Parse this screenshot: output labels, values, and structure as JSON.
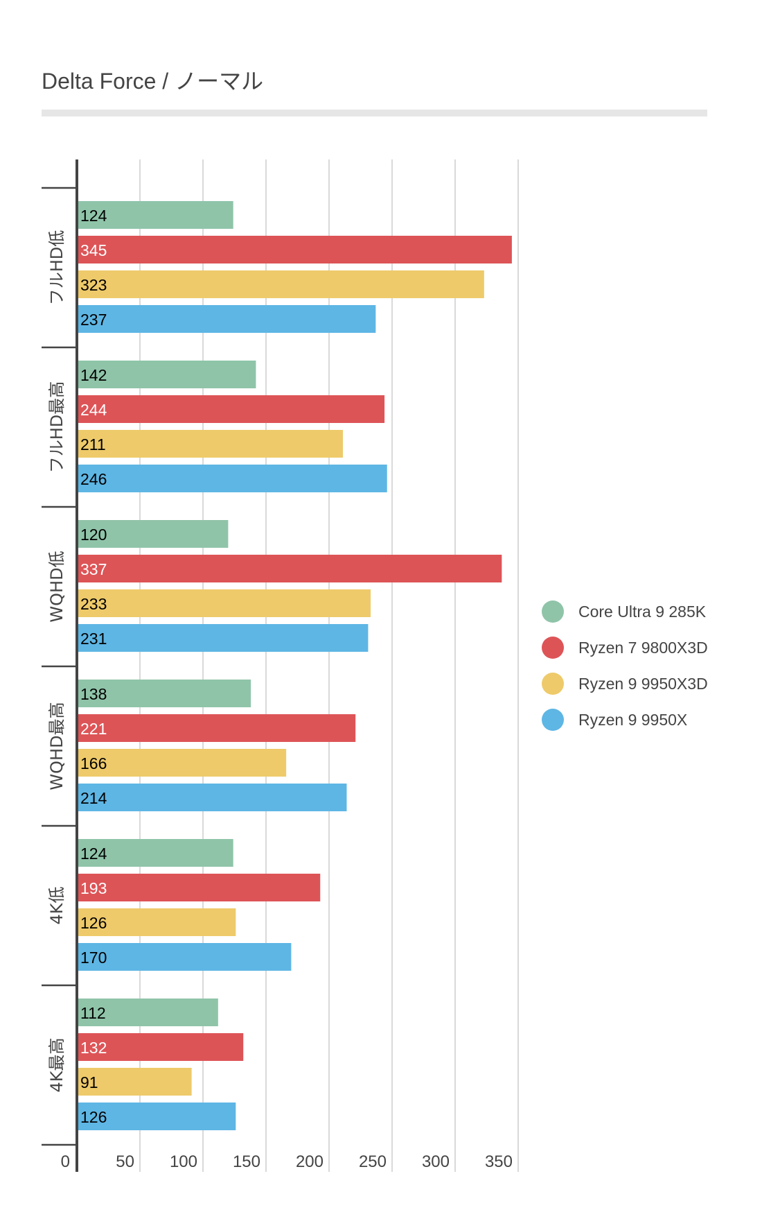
{
  "chart_data": {
    "type": "bar",
    "orientation": "horizontal",
    "title": "Delta Force / ノーマル",
    "xlabel": "",
    "ylabel": "",
    "xlim": [
      0,
      350
    ],
    "x_ticks": [
      "0",
      "50",
      "100",
      "150",
      "200",
      "250",
      "300",
      "350"
    ],
    "grid": true,
    "legend_position": "right",
    "categories": [
      "フルHD低",
      "フルHD最高",
      "WQHD低",
      "WQHD最高",
      "4K低",
      "4K最高"
    ],
    "series": [
      {
        "name": "Core Ultra 9 285K",
        "color": "#8fc4a9",
        "label_color": "#000000",
        "values": [
          124,
          142,
          120,
          138,
          124,
          112
        ]
      },
      {
        "name": "Ryzen 7 9800X3D",
        "color": "#dd5457",
        "label_color": "#ffffff",
        "values": [
          345,
          244,
          337,
          221,
          193,
          132
        ]
      },
      {
        "name": "Ryzen 9 9950X3D",
        "color": "#eeca6a",
        "label_color": "#000000",
        "values": [
          323,
          211,
          233,
          166,
          126,
          91
        ]
      },
      {
        "name": "Ryzen 9 9950X",
        "color": "#5eb6e4",
        "label_color": "#000000",
        "values": [
          237,
          246,
          231,
          214,
          170,
          126
        ]
      }
    ]
  }
}
